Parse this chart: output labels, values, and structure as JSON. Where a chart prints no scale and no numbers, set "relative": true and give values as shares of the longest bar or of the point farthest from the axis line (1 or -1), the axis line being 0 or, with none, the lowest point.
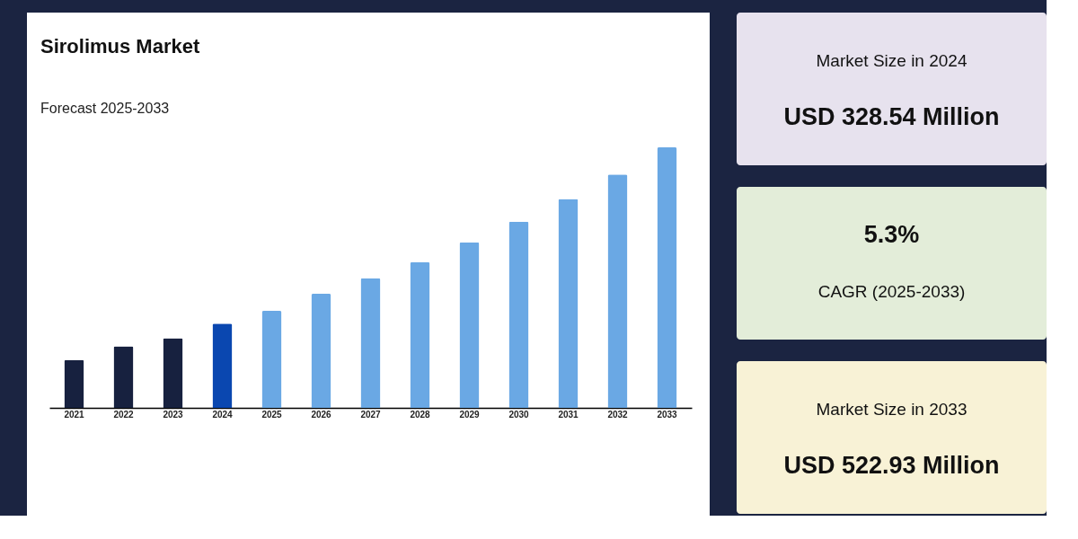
{
  "chart_data": [
    {
      "type": "bar",
      "title": "Sirolimus Market",
      "subtitle": "Forecast 2025-2033",
      "relative": true,
      "categories": [
        "2021",
        "2022",
        "2023",
        "2024",
        "2025",
        "2026",
        "2027",
        "2028",
        "2029",
        "2030",
        "2031",
        "2032",
        "2033"
      ],
      "values": [
        0.184,
        0.236,
        0.267,
        0.323,
        0.372,
        0.438,
        0.497,
        0.559,
        0.635,
        0.715,
        0.802,
        0.896,
        1
      ],
      "colors": [
        "#17213f",
        "#17213f",
        "#17213f",
        "#0a47b0",
        "#6aa8e4",
        "#6aa8e4",
        "#6aa8e4",
        "#6aa8e4",
        "#6aa8e4",
        "#6aa8e4",
        "#6aa8e4",
        "#6aa8e4",
        "#6aa8e4"
      ]
    },
    {
      "type": "other",
      "title": "Market Size in 2024",
      "annotations": [
        "USD 328.54 Million"
      ]
    },
    {
      "type": "other",
      "annotations": [
        "5.3%",
        "CAGR (2025-2033)"
      ]
    },
    {
      "type": "other",
      "title": "Market Size in 2033",
      "annotations": [
        "USD 522.93 Million"
      ]
    }
  ]
}
